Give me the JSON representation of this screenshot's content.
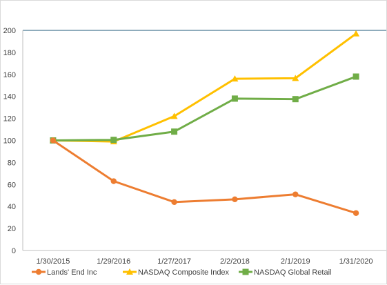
{
  "chart_data": {
    "type": "line",
    "categories": [
      "1/30/2015",
      "1/29/2016",
      "1/27/2017",
      "2/2/2018",
      "2/1/2019",
      "1/31/2020"
    ],
    "ylim": [
      0,
      200
    ],
    "yticks": [
      0,
      20,
      40,
      60,
      80,
      100,
      120,
      140,
      160,
      180,
      200
    ],
    "ylabels": [
      "0",
      "20",
      "40",
      "60",
      "80",
      "100",
      "120",
      "140",
      "160",
      "180",
      "200"
    ],
    "grid": false,
    "legend_position": "bottom",
    "series": [
      {
        "name": "Lands' End Inc",
        "color": "#ed7d31",
        "marker": "circle",
        "values": [
          100,
          63,
          44,
          46.5,
          51,
          34
        ]
      },
      {
        "name": "NASDAQ Composite Index",
        "color": "#ffc000",
        "marker": "triangle",
        "values": [
          100,
          99,
          122,
          156,
          156.5,
          197
        ]
      },
      {
        "name": "NASDAQ Global Retail",
        "color": "#70ad47",
        "marker": "square",
        "values": [
          100,
          100.5,
          108,
          138,
          137.5,
          158
        ]
      }
    ]
  }
}
